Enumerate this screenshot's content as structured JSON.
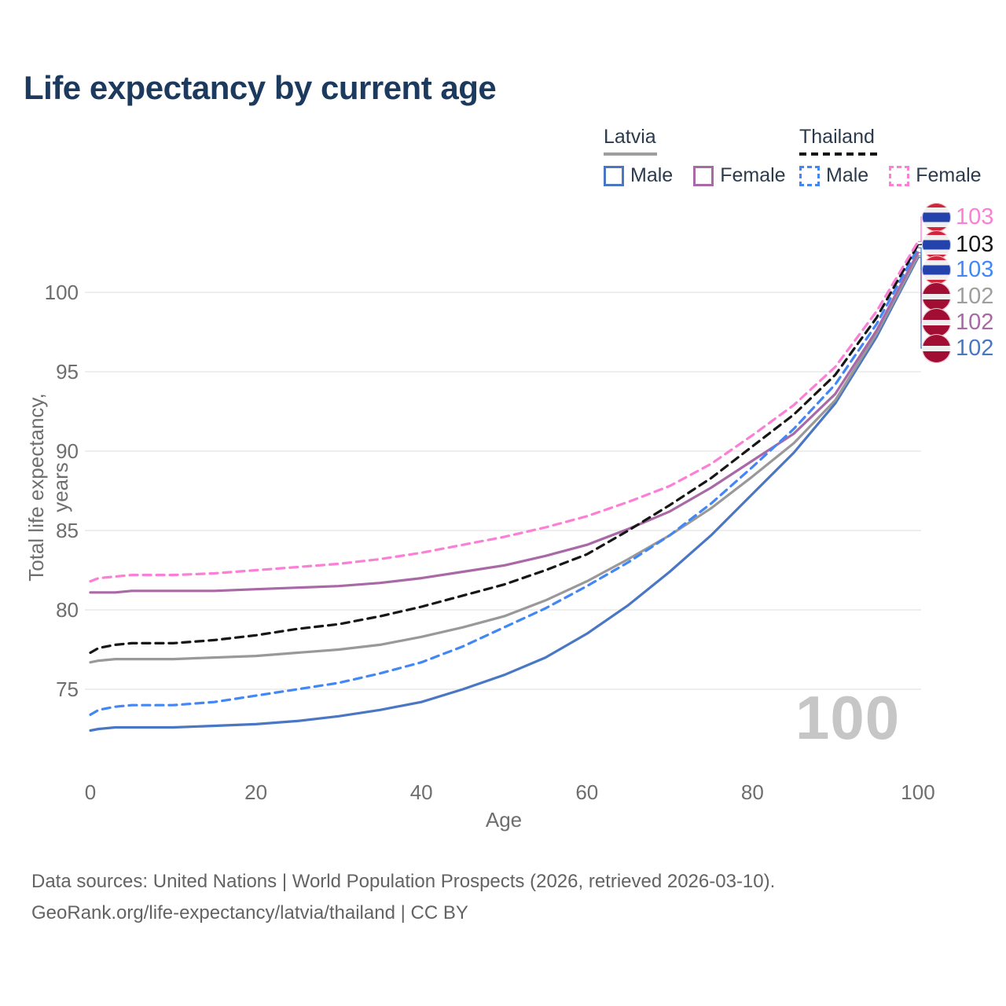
{
  "title": "Life expectancy by current age",
  "legend": {
    "groups": [
      {
        "country": "Latvia",
        "line_style": "solid",
        "items": [
          {
            "label": "Male",
            "color": "#4a77c4",
            "dashed": false
          },
          {
            "label": "Female",
            "color": "#a968a6",
            "dashed": false
          }
        ]
      },
      {
        "country": "Thailand",
        "line_style": "dashed",
        "items": [
          {
            "label": "Male",
            "color": "#4287f5",
            "dashed": true
          },
          {
            "label": "Female",
            "color": "#fb80d5",
            "dashed": true
          }
        ]
      }
    ]
  },
  "axes": {
    "x_label": "Age",
    "y_label": "Total life expectancy, years",
    "x_ticks": [
      0,
      20,
      40,
      60,
      80,
      100
    ],
    "y_ticks": [
      75,
      80,
      85,
      90,
      95,
      100
    ]
  },
  "end_labels": [
    {
      "value": "103",
      "color": "#fb80d5",
      "flag": "thailand"
    },
    {
      "value": "103",
      "color": "#161616",
      "flag": "thailand"
    },
    {
      "value": "103",
      "color": "#4287f5",
      "flag": "thailand"
    },
    {
      "value": "102",
      "color": "#9e9e9e",
      "flag": "latvia"
    },
    {
      "value": "102",
      "color": "#a968a6",
      "flag": "latvia"
    },
    {
      "value": "102",
      "color": "#4a77c4",
      "flag": "latvia"
    }
  ],
  "hover_age_label": "100",
  "footer": {
    "line1": "Data sources: United Nations | World Population Prospects (2026, retrieved 2026-03-10).",
    "line2": "GeoRank.org/life-expectancy/latvia/thailand | CC BY"
  },
  "chart_data": {
    "type": "line",
    "title": "Life expectancy by current age",
    "xlabel": "Age",
    "ylabel": "Total life expectancy, years",
    "xlim": [
      0,
      100
    ],
    "ylim": [
      71,
      104
    ],
    "grid": "horizontal",
    "x": [
      0,
      1,
      3,
      5,
      10,
      15,
      20,
      25,
      30,
      35,
      40,
      45,
      50,
      55,
      60,
      65,
      70,
      75,
      80,
      85,
      90,
      95,
      100
    ],
    "series": [
      {
        "name": "Latvia Male",
        "color": "#4a77c4",
        "dashed": false,
        "end_value": 102,
        "values": [
          72.4,
          72.5,
          72.6,
          72.6,
          72.6,
          72.7,
          72.8,
          73.0,
          73.3,
          73.7,
          74.2,
          75.0,
          75.9,
          77.0,
          78.5,
          80.3,
          82.4,
          84.7,
          87.3,
          89.9,
          93.0,
          97.2,
          102.2
        ]
      },
      {
        "name": "Latvia Both sexes",
        "color": "#999999",
        "dashed": false,
        "end_value": 102,
        "values": [
          76.7,
          76.8,
          76.9,
          76.9,
          76.9,
          77.0,
          77.1,
          77.3,
          77.5,
          77.8,
          78.3,
          78.9,
          79.6,
          80.6,
          81.8,
          83.2,
          84.7,
          86.4,
          88.4,
          90.5,
          93.2,
          97.4,
          102.3
        ]
      },
      {
        "name": "Latvia Female",
        "color": "#a968a6",
        "dashed": false,
        "end_value": 102,
        "values": [
          81.1,
          81.1,
          81.1,
          81.2,
          81.2,
          81.2,
          81.3,
          81.4,
          81.5,
          81.7,
          82.0,
          82.4,
          82.8,
          83.4,
          84.1,
          85.1,
          86.2,
          87.7,
          89.4,
          91.1,
          93.6,
          97.6,
          102.5
        ]
      },
      {
        "name": "Thailand Male",
        "color": "#4287f5",
        "dashed": true,
        "end_value": 103,
        "values": [
          73.4,
          73.7,
          73.9,
          74.0,
          74.0,
          74.2,
          74.6,
          75.0,
          75.4,
          76.0,
          76.7,
          77.7,
          78.9,
          80.1,
          81.5,
          83.0,
          84.7,
          86.7,
          89.0,
          91.4,
          94.2,
          98.0,
          102.8
        ]
      },
      {
        "name": "Thailand Both sexes",
        "color": "#161616",
        "dashed": true,
        "end_value": 103,
        "values": [
          77.3,
          77.6,
          77.8,
          77.9,
          77.9,
          78.1,
          78.4,
          78.8,
          79.1,
          79.6,
          80.2,
          80.9,
          81.6,
          82.5,
          83.5,
          85.0,
          86.6,
          88.3,
          90.3,
          92.3,
          94.8,
          98.4,
          103.0
        ]
      },
      {
        "name": "Thailand Female",
        "color": "#fb80d5",
        "dashed": true,
        "end_value": 103,
        "values": [
          81.8,
          82.0,
          82.1,
          82.2,
          82.2,
          82.3,
          82.5,
          82.7,
          82.9,
          83.2,
          83.6,
          84.1,
          84.6,
          85.2,
          85.9,
          86.8,
          87.8,
          89.2,
          91.0,
          92.9,
          95.3,
          98.8,
          103.2
        ]
      }
    ]
  }
}
